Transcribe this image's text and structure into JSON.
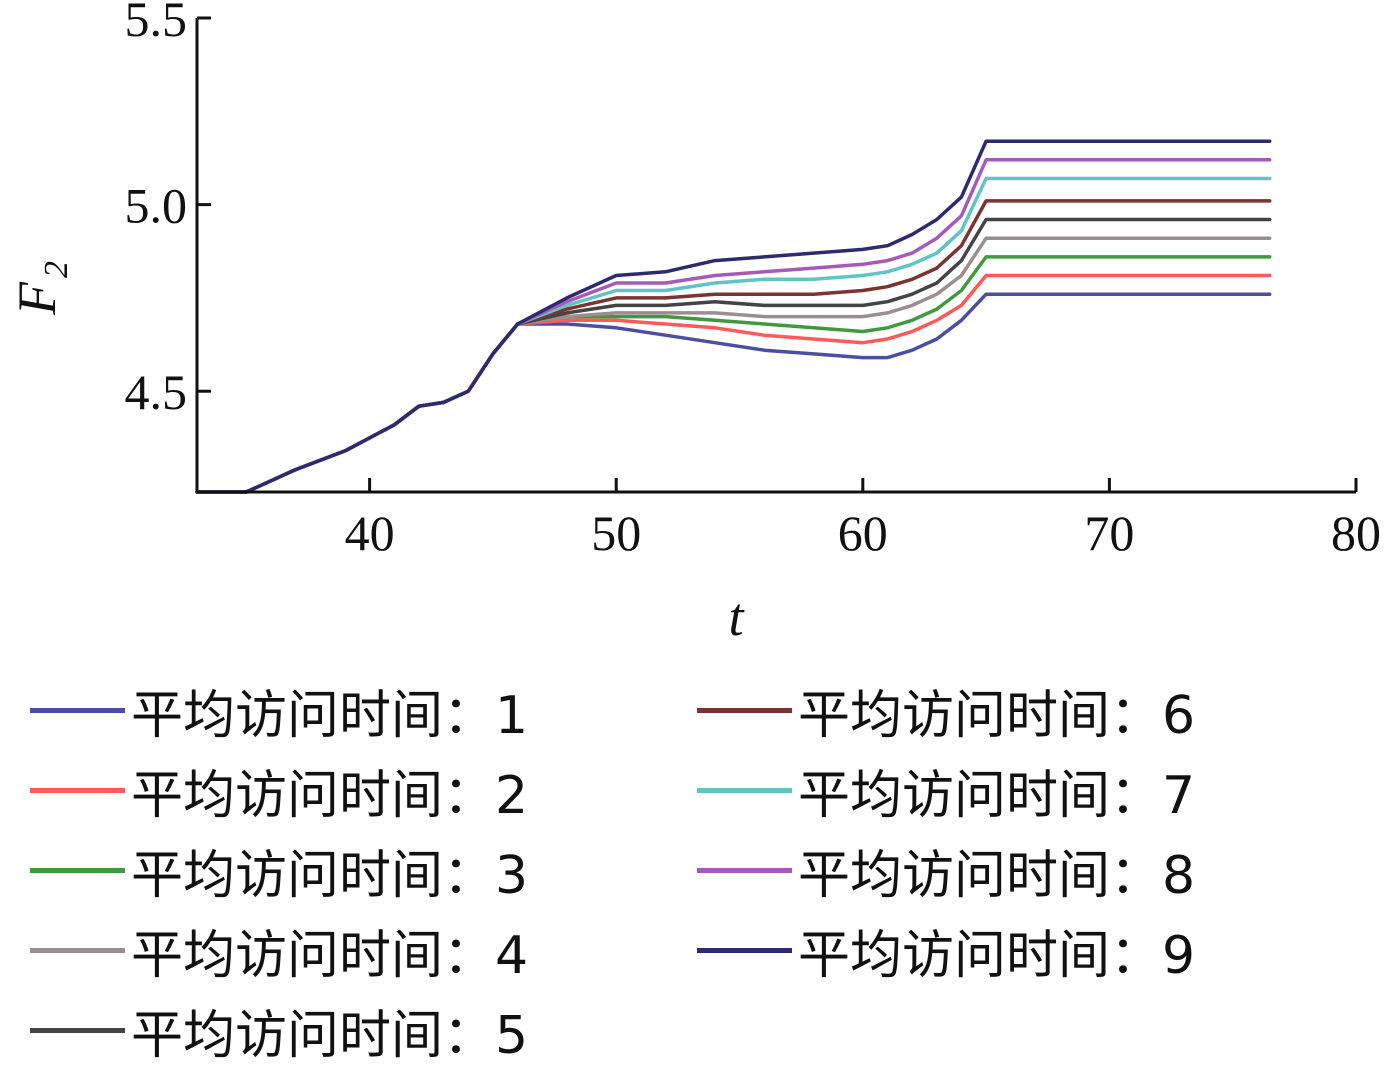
{
  "chart_data": {
    "type": "line",
    "xlabel": "t",
    "ylabel": "F",
    "ylabel_sub": "2",
    "xlim": [
      33,
      80
    ],
    "ylim": [
      4.23,
      5.5
    ],
    "xticks": [
      40,
      50,
      60,
      70,
      80
    ],
    "yticks": [
      4.5,
      5.0,
      5.5
    ],
    "xtick_labels": [
      "40",
      "50",
      "60",
      "70",
      "80"
    ],
    "ytick_labels": [
      "4.5",
      "5.0",
      "5.5"
    ],
    "grid": false,
    "legend_placement": "bottom",
    "common_x": [
      33,
      35,
      37,
      39,
      41,
      42,
      43,
      44,
      45,
      46
    ],
    "common_y": [
      4.23,
      4.23,
      4.29,
      4.34,
      4.41,
      4.46,
      4.47,
      4.5,
      4.6,
      4.68
    ],
    "x": [
      46,
      48,
      50,
      52,
      54,
      56,
      58,
      60,
      61,
      62,
      63,
      64,
      65,
      66,
      70,
      76.5
    ],
    "series": [
      {
        "name": "平均访问时间：1",
        "color": "#4b4fa3",
        "values": [
          4.68,
          4.68,
          4.67,
          4.65,
          4.63,
          4.61,
          4.6,
          4.59,
          4.59,
          4.61,
          4.64,
          4.69,
          4.76,
          4.76,
          4.76,
          4.76
        ]
      },
      {
        "name": "平均访问时间：2",
        "color": "#ff5a5a",
        "values": [
          4.68,
          4.69,
          4.69,
          4.68,
          4.67,
          4.65,
          4.64,
          4.63,
          4.64,
          4.66,
          4.69,
          4.73,
          4.81,
          4.81,
          4.81,
          4.81
        ]
      },
      {
        "name": "平均访问时间：3",
        "color": "#3f9a3f",
        "values": [
          4.68,
          4.7,
          4.7,
          4.7,
          4.69,
          4.68,
          4.67,
          4.66,
          4.67,
          4.69,
          4.72,
          4.77,
          4.86,
          4.86,
          4.86,
          4.86
        ]
      },
      {
        "name": "平均访问时间：4",
        "color": "#9a8f8f",
        "values": [
          4.68,
          4.7,
          4.71,
          4.71,
          4.71,
          4.7,
          4.7,
          4.7,
          4.71,
          4.73,
          4.76,
          4.81,
          4.91,
          4.91,
          4.91,
          4.91
        ]
      },
      {
        "name": "平均访问时间：5",
        "color": "#444444",
        "values": [
          4.68,
          4.71,
          4.73,
          4.73,
          4.74,
          4.73,
          4.73,
          4.73,
          4.74,
          4.76,
          4.79,
          4.85,
          4.96,
          4.96,
          4.96,
          4.96
        ]
      },
      {
        "name": "平均访问时间：6",
        "color": "#7a3530",
        "values": [
          4.68,
          4.72,
          4.75,
          4.75,
          4.76,
          4.76,
          4.76,
          4.77,
          4.78,
          4.8,
          4.83,
          4.89,
          5.01,
          5.01,
          5.01,
          5.01
        ]
      },
      {
        "name": "平均访问时间：7",
        "color": "#5fc4c4",
        "values": [
          4.68,
          4.73,
          4.77,
          4.77,
          4.79,
          4.8,
          4.8,
          4.81,
          4.82,
          4.84,
          4.87,
          4.93,
          5.07,
          5.07,
          5.07,
          5.07
        ]
      },
      {
        "name": "平均访问时间：8",
        "color": "#a55aba",
        "values": [
          4.68,
          4.74,
          4.79,
          4.79,
          4.81,
          4.82,
          4.83,
          4.84,
          4.85,
          4.87,
          4.91,
          4.97,
          5.12,
          5.12,
          5.12,
          5.12
        ]
      },
      {
        "name": "平均访问时间：9",
        "color": "#2d2a6e",
        "values": [
          4.68,
          4.75,
          4.81,
          4.82,
          4.85,
          4.86,
          4.87,
          4.88,
          4.89,
          4.92,
          4.96,
          5.02,
          5.17,
          5.17,
          5.17,
          5.17
        ]
      }
    ]
  }
}
